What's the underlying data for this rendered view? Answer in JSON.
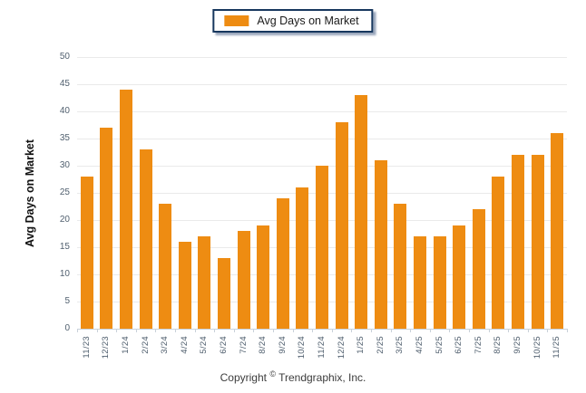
{
  "legend": {
    "label": "Avg Days on Market"
  },
  "footer": {
    "copyright": "Copyright © Trendgraphix, Inc."
  },
  "colors": {
    "bar": "#EE8C12",
    "legend_border": "#17375E",
    "legend_shadow": "#9AA7BC",
    "gridline": "#EAEAEA",
    "axis_line": "#C9D1D9",
    "tick_text": "#51606F",
    "axis_title_text": "#111111"
  },
  "chart_data": {
    "type": "bar",
    "title": "",
    "xlabel": "",
    "ylabel": "Avg Days on Market",
    "legend": [
      "Avg Days on Market"
    ],
    "legend_position": "top-center",
    "grid": true,
    "ylim": [
      0,
      50
    ],
    "ytick_step": 5,
    "categories": [
      "11/23",
      "12/23",
      "1/24",
      "2/24",
      "3/24",
      "4/24",
      "5/24",
      "6/24",
      "7/24",
      "8/24",
      "9/24",
      "10/24",
      "11/24",
      "12/24",
      "1/25",
      "2/25",
      "3/25",
      "4/25",
      "5/25",
      "6/25",
      "7/25",
      "8/25",
      "9/25",
      "10/25",
      "11/25"
    ],
    "values": [
      28,
      37,
      44,
      33,
      23,
      16,
      17,
      13,
      18,
      19,
      24,
      26,
      30,
      38,
      43,
      31,
      23,
      17,
      17,
      19,
      22,
      28,
      32,
      32,
      36
    ]
  }
}
